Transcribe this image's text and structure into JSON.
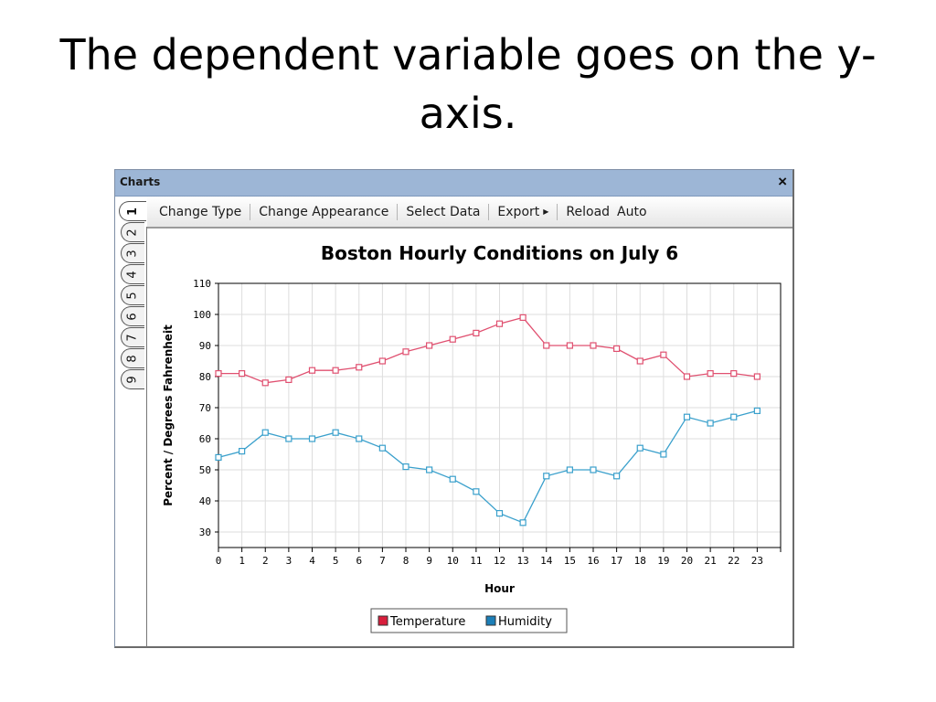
{
  "slide": {
    "title_line1": "The dependent variable goes on the y-",
    "title_line2": "axis."
  },
  "window": {
    "title": "Charts",
    "close_label": "×"
  },
  "toolbar": {
    "change_type": "Change Type",
    "change_appearance": "Change Appearance",
    "select_data": "Select Data",
    "export": "Export",
    "reload": "Reload",
    "auto": "Auto"
  },
  "tabs": [
    "1",
    "2",
    "3",
    "4",
    "5",
    "6",
    "7",
    "8",
    "9"
  ],
  "colors": {
    "temperature": "#e05070",
    "humidity": "#3aa0cc",
    "grid": "#dddddd",
    "legend_temperature": "#d81e3c",
    "legend_humidity": "#1c7fb8"
  },
  "chart_data": {
    "type": "line",
    "title": "Boston Hourly Conditions on July 6",
    "xlabel": "Hour",
    "ylabel": "Percent / Degrees Fahrenheit",
    "x": [
      0,
      1,
      2,
      3,
      4,
      5,
      6,
      7,
      8,
      9,
      10,
      11,
      12,
      13,
      14,
      15,
      16,
      17,
      18,
      19,
      20,
      21,
      22,
      23
    ],
    "xlim": [
      0,
      24
    ],
    "ylim": [
      25,
      110
    ],
    "yticks": [
      30,
      40,
      50,
      60,
      70,
      80,
      90,
      100,
      110
    ],
    "grid": true,
    "legend_position": "bottom",
    "series": [
      {
        "name": "Temperature",
        "values": [
          81,
          81,
          78,
          79,
          82,
          82,
          83,
          85,
          88,
          90,
          92,
          94,
          97,
          99,
          90,
          90,
          90,
          89,
          85,
          87,
          80,
          81,
          81,
          80
        ]
      },
      {
        "name": "Humidity",
        "values": [
          54,
          56,
          62,
          60,
          60,
          62,
          60,
          57,
          51,
          50,
          47,
          43,
          36,
          33,
          48,
          50,
          50,
          48,
          57,
          55,
          67,
          65,
          67,
          69
        ]
      }
    ]
  }
}
